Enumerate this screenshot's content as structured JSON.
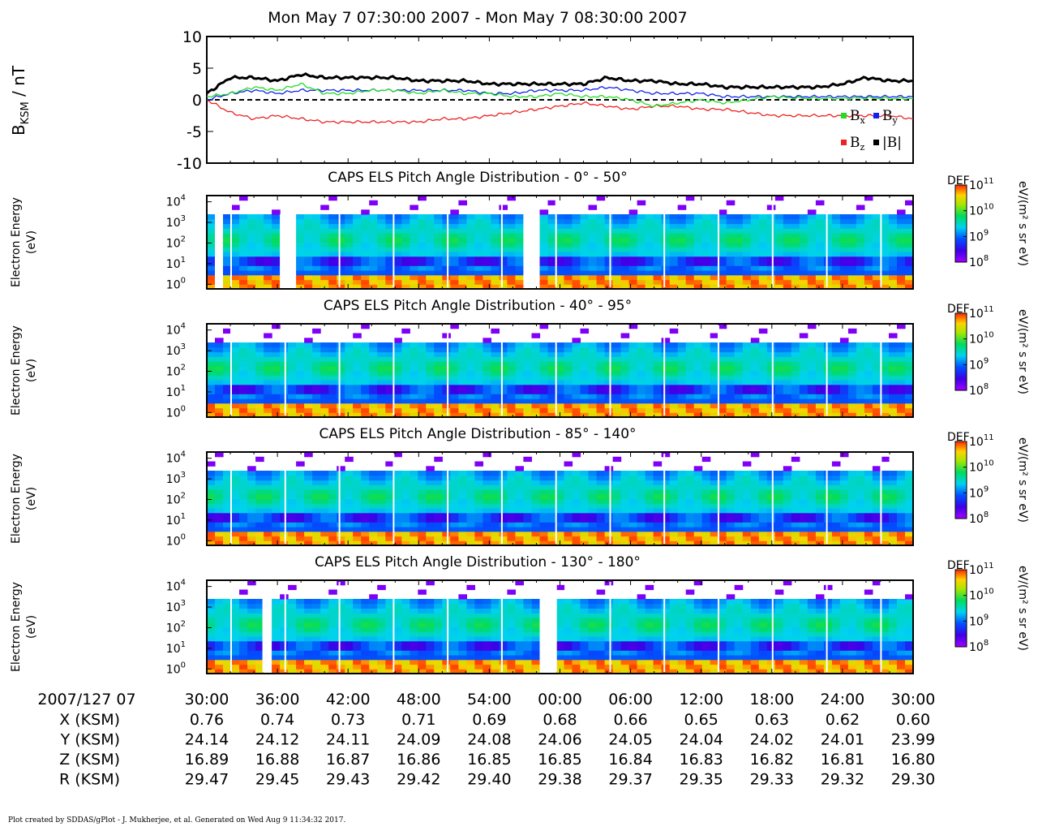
{
  "title": "Mon May 7 07:30:00 2007 - Mon May 7 08:30:00 2007",
  "footer": "Plot created by SDDAS/gPlot - J. Mukherjee, et al.  Generated on Wed Aug 9 11:34:32 2017.",
  "colors": {
    "bx": "#22dd22",
    "by": "#1122ee",
    "bz": "#ee2222",
    "btotal": "#000000"
  },
  "chart_data": [
    {
      "type": "line",
      "ylabel_main": "B",
      "ylabel_sub": "KSM",
      "ylabel_tail": " / nT",
      "ylim": [
        -10,
        10
      ],
      "yticks": [
        "10",
        "5",
        "0",
        "-5",
        "-10"
      ],
      "x_minutes": [
        0,
        2,
        4,
        6,
        8,
        10,
        12,
        14,
        16,
        18,
        20,
        22,
        24,
        26,
        28,
        30,
        32,
        34,
        36,
        38,
        40,
        42,
        44,
        46,
        48,
        50,
        52,
        54,
        56,
        58,
        60
      ],
      "legend": [
        {
          "key": "bx",
          "main": "B",
          "sub": "x"
        },
        {
          "key": "by",
          "main": "B",
          "sub": "y"
        },
        {
          "key": "bz",
          "main": "B",
          "sub": "z"
        },
        {
          "key": "btotal",
          "main": "|B|",
          "sub": ""
        }
      ],
      "series": [
        {
          "key": "bx",
          "values": [
            0.5,
            1.0,
            2.0,
            1.5,
            2.5,
            1.0,
            1.0,
            1.5,
            1.5,
            1.0,
            1.5,
            1.0,
            1.0,
            0.5,
            0.5,
            1.0,
            0.5,
            0.5,
            0,
            -1.0,
            -0.5,
            0,
            -0.5,
            0,
            0.5,
            0.3,
            0.2,
            0.2,
            0.3,
            0.2,
            0.2
          ]
        },
        {
          "key": "by",
          "values": [
            0,
            1.0,
            1.5,
            1.0,
            1.5,
            1.5,
            1.5,
            1.5,
            1.5,
            1.5,
            1.5,
            1.5,
            1.0,
            1.0,
            1.5,
            1.5,
            1.5,
            2.0,
            1.5,
            1.0,
            1.0,
            1.0,
            0.5,
            0.5,
            0.5,
            0.5,
            0.5,
            0.5,
            0.5,
            0.5,
            0.5
          ]
        },
        {
          "key": "bz",
          "values": [
            0,
            -2.0,
            -3.0,
            -2.5,
            -3.0,
            -3.5,
            -3.5,
            -3.5,
            -3.5,
            -3.5,
            -3.0,
            -3.0,
            -2.5,
            -2.0,
            -1.5,
            -1.0,
            -0.5,
            -1.0,
            -1.5,
            -1.0,
            -1.0,
            -1.5,
            -1.5,
            -2.0,
            -2.5,
            -2.5,
            -2.5,
            -2.5,
            -2.5,
            -2.5,
            -3.0
          ]
        },
        {
          "key": "btotal",
          "values": [
            1.0,
            3.5,
            3.5,
            3.0,
            4.0,
            3.5,
            3.5,
            3.5,
            3.5,
            3.0,
            3.0,
            3.0,
            2.5,
            2.5,
            2.5,
            2.5,
            2.5,
            3.5,
            3.0,
            3.0,
            2.5,
            2.5,
            2.0,
            2.0,
            2.0,
            2.0,
            2.0,
            2.5,
            3.5,
            3.0,
            3.0
          ]
        }
      ]
    },
    {
      "type": "heatmap",
      "title": "CAPS ELS Pitch Angle Distribution - 0° - 50°",
      "ylabel_line1": "Electron Energy",
      "ylabel_line2": "(eV)",
      "yscale": "log",
      "ylim_ev": [
        0.6,
        20000
      ],
      "yticks_exp": [
        "4",
        "3",
        "2",
        "1",
        "0"
      ],
      "colorbar": {
        "label": "DEF",
        "units": "eV/(m² s sr eV)",
        "exp_ticks": [
          "11",
          "10",
          "9",
          "8"
        ],
        "range_log": [
          8,
          11
        ]
      },
      "gaps_minutes": [
        1,
        7,
        27.5
      ]
    },
    {
      "type": "heatmap",
      "title": "CAPS ELS Pitch Angle Distribution - 40° - 95°",
      "ylabel_line1": "Electron Energy",
      "ylabel_line2": "(eV)",
      "yscale": "log",
      "ylim_ev": [
        0.6,
        20000
      ],
      "yticks_exp": [
        "4",
        "3",
        "2",
        "1",
        "0"
      ],
      "colorbar": {
        "label": "DEF",
        "units": "eV/(m² s sr eV)",
        "exp_ticks": [
          "11",
          "10",
          "9",
          "8"
        ],
        "range_log": [
          8,
          11
        ]
      },
      "gaps_minutes": []
    },
    {
      "type": "heatmap",
      "title": "CAPS ELS Pitch Angle Distribution - 85° - 140°",
      "ylabel_line1": "Electron Energy",
      "ylabel_line2": "(eV)",
      "yscale": "log",
      "ylim_ev": [
        0.6,
        20000
      ],
      "yticks_exp": [
        "4",
        "3",
        "2",
        "1",
        "0"
      ],
      "colorbar": {
        "label": "DEF",
        "units": "eV/(m² s sr eV)",
        "exp_ticks": [
          "11",
          "10",
          "9",
          "8"
        ],
        "range_log": [
          8,
          11
        ]
      },
      "gaps_minutes": []
    },
    {
      "type": "heatmap",
      "title": "CAPS ELS Pitch Angle Distribution - 130° - 180°",
      "ylabel_line1": "Electron Energy",
      "ylabel_line2": "(eV)",
      "yscale": "log",
      "ylim_ev": [
        0.6,
        20000
      ],
      "yticks_exp": [
        "4",
        "3",
        "2",
        "1",
        "0"
      ],
      "colorbar": {
        "label": "DEF",
        "units": "eV/(m² s sr eV)",
        "exp_ticks": [
          "11",
          "10",
          "9",
          "8"
        ],
        "range_log": [
          8,
          11
        ]
      },
      "gaps_minutes": [
        5,
        29
      ]
    }
  ],
  "time_axis": {
    "row_label": "2007/127 07",
    "ticks": [
      "30:00",
      "36:00",
      "42:00",
      "48:00",
      "54:00",
      "00:00",
      "06:00",
      "12:00",
      "18:00",
      "24:00",
      "30:00"
    ]
  },
  "ephemeris": [
    {
      "label": "X (KSM)",
      "values": [
        "0.76",
        "0.74",
        "0.73",
        "0.71",
        "0.69",
        "0.68",
        "0.66",
        "0.65",
        "0.63",
        "0.62",
        "0.60"
      ]
    },
    {
      "label": "Y (KSM)",
      "values": [
        "24.14",
        "24.12",
        "24.11",
        "24.09",
        "24.08",
        "24.06",
        "24.05",
        "24.04",
        "24.02",
        "24.01",
        "23.99"
      ]
    },
    {
      "label": "Z (KSM)",
      "values": [
        "16.89",
        "16.88",
        "16.87",
        "16.86",
        "16.85",
        "16.85",
        "16.84",
        "16.83",
        "16.82",
        "16.81",
        "16.80"
      ]
    },
    {
      "label": "R (KSM)",
      "values": [
        "29.47",
        "29.45",
        "29.43",
        "29.42",
        "29.40",
        "29.38",
        "29.37",
        "29.35",
        "29.33",
        "29.32",
        "29.30"
      ]
    }
  ]
}
